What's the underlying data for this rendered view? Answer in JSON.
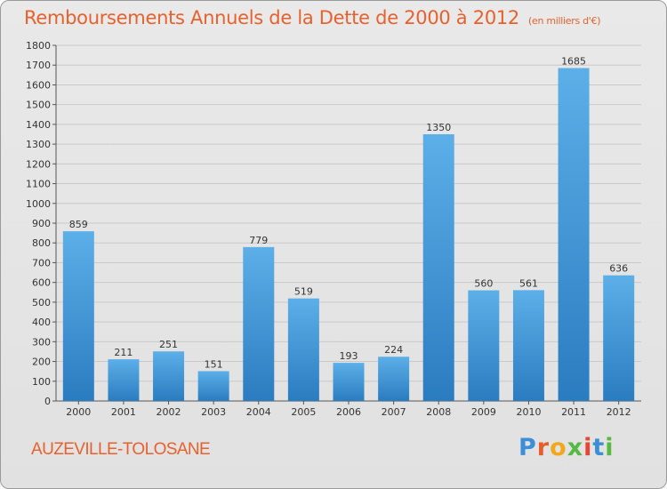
{
  "title": "Remboursements Annuels de la Dette de 2000 à 2012",
  "subtitle": "(en milliers d'€)",
  "commune": "AUZEVILLE-TOLOSANE",
  "logo": {
    "letters": [
      "P",
      "r",
      "o",
      "x",
      "i",
      "t",
      "i"
    ],
    "colors": [
      "#3b8fd6",
      "#e85c2a",
      "#f2a81d",
      "#57b844",
      "#e8442f",
      "#3b8fd6",
      "#57b844"
    ]
  },
  "colors": {
    "title": "#e8612c",
    "bar": "#3d8fd4",
    "grid": "#c9c9c9"
  },
  "chart_data": {
    "type": "bar",
    "title": "Remboursements Annuels de la Dette de 2000 à 2012",
    "subtitle": "(en milliers d'€)",
    "categories": [
      "2000",
      "2001",
      "2002",
      "2003",
      "2004",
      "2005",
      "2006",
      "2007",
      "2008",
      "2009",
      "2010",
      "2011",
      "2012"
    ],
    "values": [
      859,
      211,
      251,
      151,
      779,
      519,
      193,
      224,
      1350,
      560,
      561,
      1685,
      636
    ],
    "ylim": [
      0,
      1800
    ],
    "yticks": [
      0,
      100,
      200,
      300,
      400,
      500,
      600,
      700,
      800,
      900,
      1000,
      1100,
      1200,
      1300,
      1400,
      1500,
      1600,
      1700,
      1800
    ],
    "grid": true,
    "data_labels": true
  }
}
